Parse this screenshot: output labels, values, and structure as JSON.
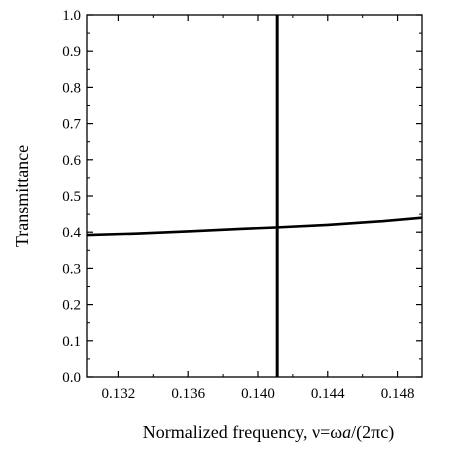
{
  "chart_data": {
    "type": "line",
    "title": "",
    "xlabel": "Normalized frequency, ν=ωa/(2πc)",
    "xlabel_parts": {
      "prefix": "Normalized frequency, ν=ω",
      "italic": "a",
      "suffix": "/(2πc)"
    },
    "ylabel": "Transmittance",
    "xlim": [
      0.1302,
      0.1494
    ],
    "ylim": [
      0.0,
      1.0
    ],
    "x_ticks": [
      0.132,
      0.136,
      0.14,
      0.144,
      0.148
    ],
    "x_tick_labels": [
      "0.132",
      "0.136",
      "0.140",
      "0.144",
      "0.148"
    ],
    "y_ticks": [
      0.0,
      0.1,
      0.2,
      0.3,
      0.4,
      0.5,
      0.6,
      0.7,
      0.8,
      0.9,
      1.0
    ],
    "y_tick_labels": [
      "0.0",
      "0.1",
      "0.2",
      "0.3",
      "0.4",
      "0.5",
      "0.6",
      "0.7",
      "0.8",
      "0.9",
      "1.0"
    ],
    "grid": false,
    "legend": "none",
    "series": [
      {
        "x": [
          0.1302,
          0.133,
          0.136,
          0.139,
          0.141,
          0.144,
          0.147,
          0.1494
        ],
        "y": [
          0.392,
          0.396,
          0.402,
          0.409,
          0.413,
          0.42,
          0.43,
          0.44
        ]
      },
      {
        "x": [
          0.1411,
          0.1411
        ],
        "y": [
          0.0,
          1.0
        ]
      }
    ]
  }
}
